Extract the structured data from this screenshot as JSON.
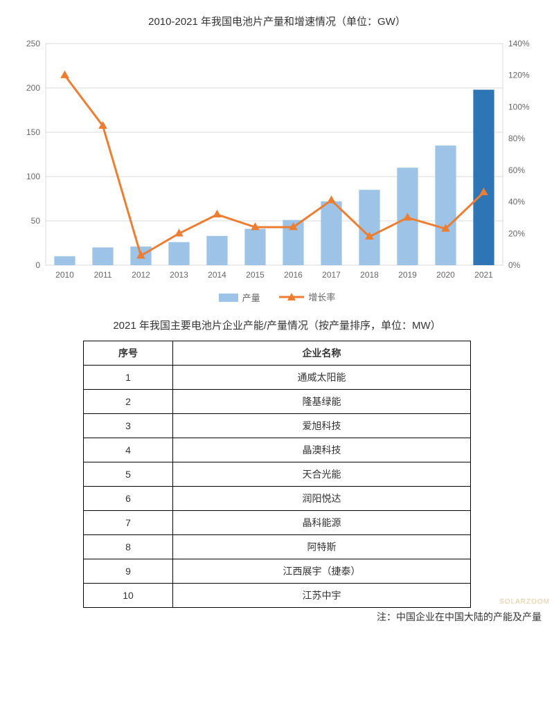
{
  "chart": {
    "title": "2010-2021 年我国电池片产量和增速情况（单位：GW）",
    "type": "bar+line",
    "categories": [
      "2010",
      "2011",
      "2012",
      "2013",
      "2014",
      "2015",
      "2016",
      "2017",
      "2018",
      "2019",
      "2020",
      "2021"
    ],
    "bar_series": {
      "name": "产量",
      "values": [
        10,
        20,
        21,
        26,
        33,
        41,
        51,
        72,
        85,
        110,
        135,
        198
      ],
      "color": "#9dc3e6",
      "highlight_last_color": "#2e75b6",
      "bar_width": 0.55
    },
    "line_series": {
      "name": "增长率",
      "values_pct": [
        120,
        88,
        6,
        20,
        32,
        24,
        24,
        41,
        18,
        30,
        23,
        46
      ],
      "color": "#ed7d31",
      "marker": "triangle",
      "marker_size": 7,
      "line_width": 3
    },
    "y_left": {
      "min": 0,
      "max": 250,
      "step": 50
    },
    "y_right": {
      "min": 0,
      "max": 140,
      "step": 20,
      "suffix": "%"
    },
    "plot": {
      "background": "#ffffff",
      "border_color": "#d9d9d9",
      "grid_color": "#d9d9d9",
      "tick_font_size": 12,
      "tick_color": "#666666"
    },
    "legend": {
      "bar_label": "产量",
      "line_label": "增长率"
    }
  },
  "table": {
    "title": "2021 年我国主要电池片企业产能/产量情况（按产量排序，单位：MW）",
    "columns": [
      "序号",
      "企业名称"
    ],
    "rows": [
      [
        "1",
        "通威太阳能"
      ],
      [
        "2",
        "隆基绿能"
      ],
      [
        "3",
        "爱旭科技"
      ],
      [
        "4",
        "晶澳科技"
      ],
      [
        "5",
        "天合光能"
      ],
      [
        "6",
        "润阳悦达"
      ],
      [
        "7",
        "晶科能源"
      ],
      [
        "8",
        "阿特斯"
      ],
      [
        "9",
        "江西展宇（捷泰）"
      ],
      [
        "10",
        "江苏中宇"
      ]
    ]
  },
  "footnote": "注：中国企业在中国大陆的产能及产量",
  "watermark": "SOLARZOOM"
}
